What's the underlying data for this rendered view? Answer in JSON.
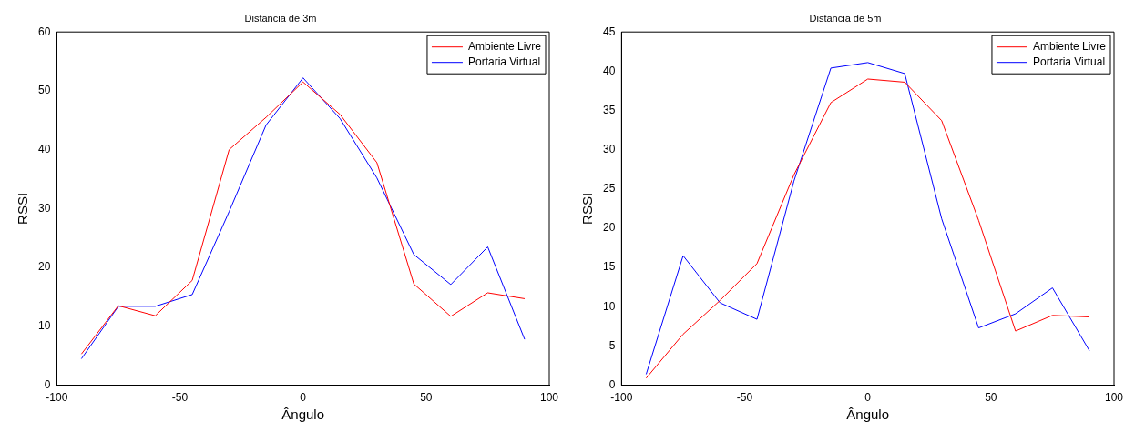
{
  "chart_data": [
    {
      "type": "line",
      "title": "Distancia de 3m",
      "xlabel": "Ângulo",
      "ylabel": "RSSI",
      "x": [
        -90,
        -75,
        -60,
        -45,
        -30,
        -15,
        0,
        15,
        30,
        45,
        60,
        75,
        90
      ],
      "xlim": [
        -100,
        100
      ],
      "xticks": [
        -100,
        -50,
        0,
        50,
        100
      ],
      "ylim": [
        0,
        60
      ],
      "yticks": [
        0,
        10,
        20,
        30,
        40,
        50,
        60
      ],
      "grid": false,
      "legend": "top right",
      "marker": "none",
      "line_style": "solid",
      "series": [
        {
          "name": "Ambiente Livre",
          "color": "#ff0000",
          "values": [
            5.3,
            13.5,
            11.8,
            17.8,
            40,
            45.5,
            51.5,
            46,
            37.8,
            17.2,
            11.7,
            15.7,
            14.7
          ]
        },
        {
          "name": "Portaria Virtual",
          "color": "#0000ff",
          "values": [
            4.5,
            13.4,
            13.4,
            15.4,
            29.5,
            44.2,
            52.2,
            45.3,
            35.2,
            22.2,
            17.1,
            23.5,
            7.8
          ]
        }
      ]
    },
    {
      "type": "line",
      "title": "Distancia de 5m",
      "xlabel": "Ângulo",
      "ylabel": "RSSI",
      "x": [
        -90,
        -75,
        -60,
        -45,
        -30,
        -15,
        0,
        15,
        30,
        45,
        60,
        75,
        90
      ],
      "xlim": [
        -100,
        100
      ],
      "xticks": [
        -100,
        -50,
        0,
        50,
        100
      ],
      "ylim": [
        0,
        45
      ],
      "yticks": [
        0,
        5,
        10,
        15,
        20,
        25,
        30,
        35,
        40,
        45
      ],
      "grid": false,
      "legend": "top right",
      "marker": "none",
      "line_style": "solid",
      "series": [
        {
          "name": "Ambiente Livre",
          "color": "#ff0000",
          "values": [
            0.9,
            6.5,
            10.8,
            15.5,
            26.8,
            36,
            39,
            38.6,
            33.7,
            21,
            6.9,
            8.9,
            8.7
          ]
        },
        {
          "name": "Portaria Virtual",
          "color": "#0000ff",
          "values": [
            1.4,
            16.5,
            10.5,
            8.4,
            26,
            40.4,
            41.1,
            39.7,
            21.2,
            7.3,
            9.1,
            12.4,
            4.4
          ]
        }
      ]
    }
  ]
}
